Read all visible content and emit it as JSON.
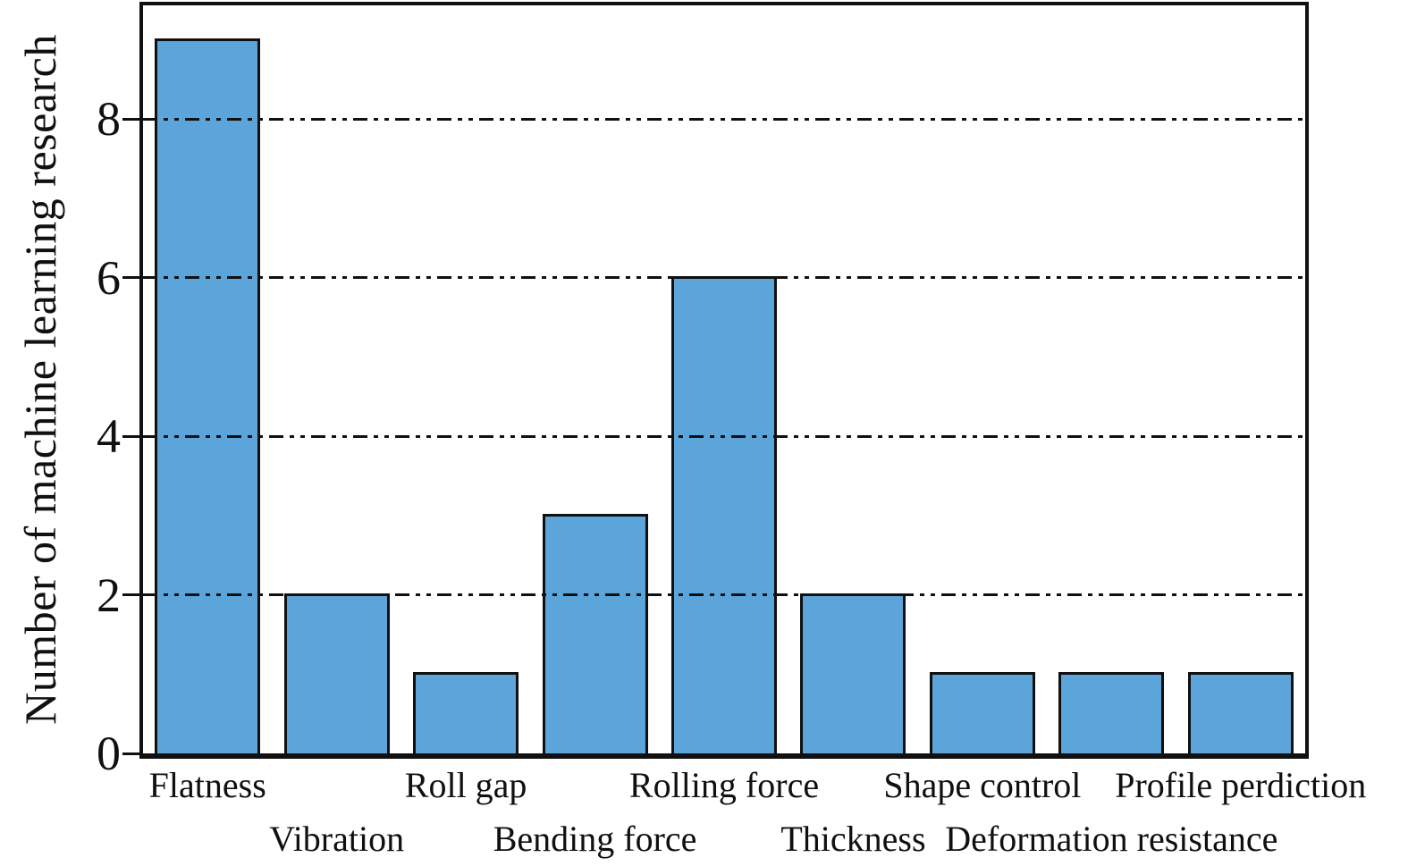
{
  "chart_data": {
    "type": "bar",
    "title": "",
    "xlabel": "",
    "ylabel": "Number of machine learning research",
    "categories": [
      "Flatness",
      "Vibration",
      "Roll gap",
      "Bending force",
      "Rolling force",
      "Thickness",
      "Shape control",
      "Deformation resistance",
      "Profile perdiction"
    ],
    "values": [
      9,
      2,
      1,
      3,
      6,
      2,
      1,
      1,
      1
    ],
    "ylim": [
      0,
      9.45
    ],
    "yticks": [
      {
        "value": 0,
        "label": "0"
      },
      {
        "value": 2,
        "label": "2"
      },
      {
        "value": 4,
        "label": "4"
      },
      {
        "value": 6,
        "label": "6"
      },
      {
        "value": 8,
        "label": "8"
      }
    ],
    "gridline_values": [
      2,
      4,
      6,
      8
    ],
    "grid_style": "dash-dot-dot",
    "grid_on": true,
    "legend_position": "none",
    "bar_color": "#5BA5DB",
    "bar_edge_color": "#101010",
    "axis_color": "#101010",
    "xlabel_layout": "staggered-two-rows"
  }
}
